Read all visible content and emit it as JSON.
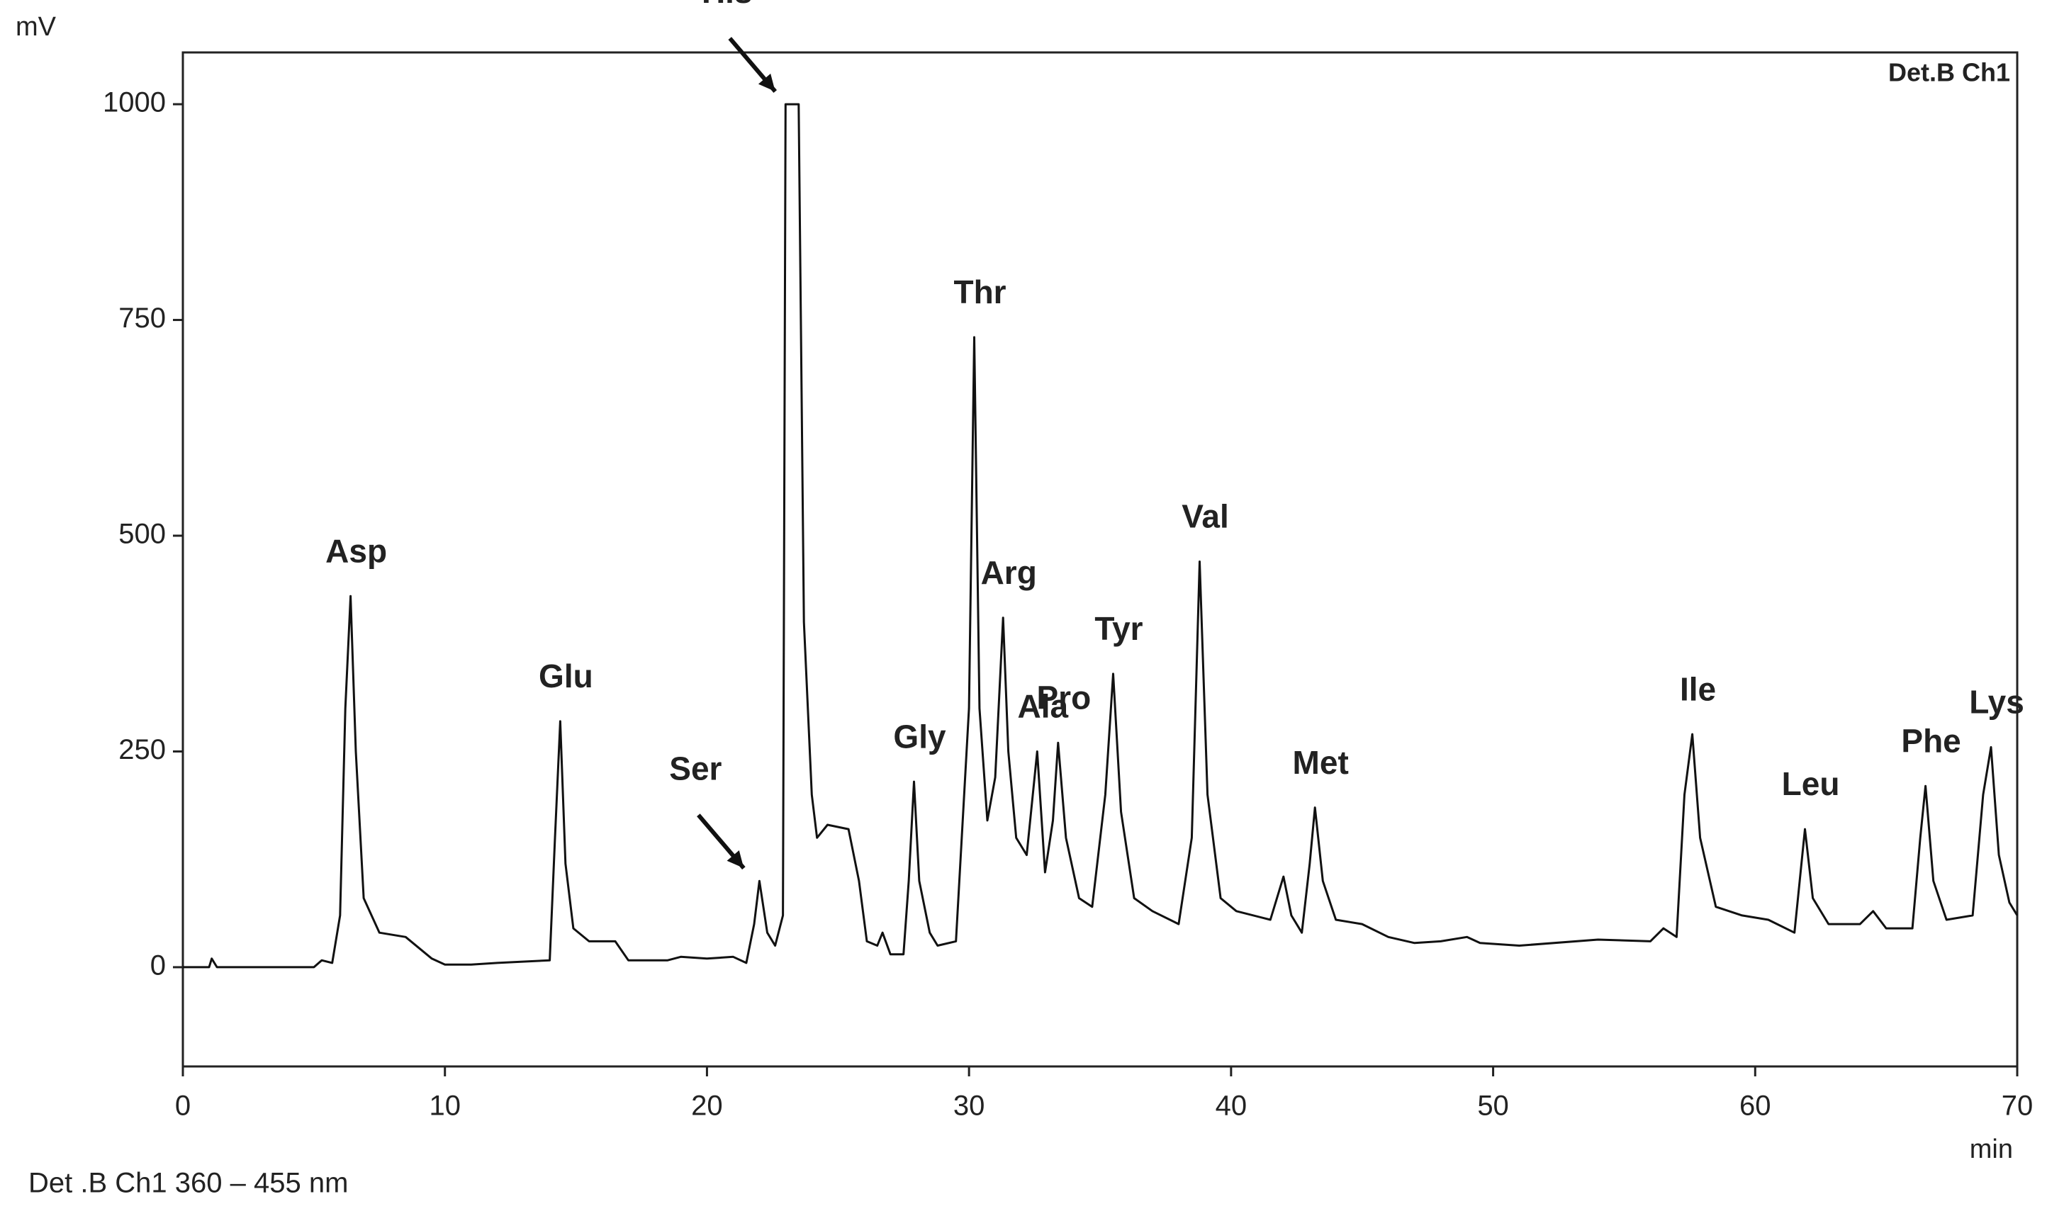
{
  "chart_data": {
    "type": "line",
    "y_label": "mV",
    "x_label": "min",
    "plot_note": "Det.B Ch1",
    "caption": "Det .B Ch1 360 – 455 nm",
    "color": "#111111",
    "xlim": [
      0,
      70
    ],
    "ylim": [
      -115,
      1060
    ],
    "xticks": [
      0,
      10,
      20,
      30,
      40,
      50,
      60,
      70
    ],
    "yticks": [
      0,
      250,
      500,
      750,
      1000
    ],
    "x": [
      0,
      1.0,
      1.1,
      1.3,
      5,
      5.3,
      5.7,
      6.0,
      6.2,
      6.4,
      6.6,
      6.9,
      7.5,
      8.5,
      9.5,
      10,
      11,
      12,
      14.0,
      14.2,
      14.4,
      14.6,
      14.9,
      15.5,
      16.5,
      17,
      18.5,
      19,
      20,
      21,
      21.5,
      21.8,
      22.0,
      22.3,
      22.6,
      22.9,
      23.0,
      23.5,
      23.7,
      24.0,
      24.2,
      24.6,
      25.4,
      25.8,
      26.1,
      26.5,
      26.7,
      27.0,
      27.5,
      27.7,
      27.9,
      28.1,
      28.5,
      28.8,
      29.5,
      30.0,
      30.2,
      30.4,
      30.7,
      31.0,
      31.3,
      31.5,
      31.8,
      32.2,
      32.6,
      32.9,
      33.2,
      33.4,
      33.7,
      34.2,
      34.7,
      35.2,
      35.5,
      35.8,
      36.3,
      37,
      38,
      38.5,
      38.8,
      39.1,
      39.6,
      40.2,
      41.5,
      42.0,
      42.3,
      42.7,
      43.0,
      43.2,
      43.5,
      44,
      45,
      46,
      47,
      48,
      49,
      49.5,
      51,
      54,
      56,
      56.5,
      57.0,
      57.3,
      57.6,
      57.9,
      58.5,
      59.5,
      60.5,
      61.5,
      61.7,
      61.9,
      62.2,
      62.8,
      64,
      64.5,
      65,
      66,
      66.3,
      66.5,
      66.8,
      67.3,
      68.3,
      68.7,
      69.0,
      69.3,
      69.7,
      70
    ],
    "values": [
      0,
      0,
      10,
      0,
      0,
      8,
      5,
      60,
      300,
      430,
      250,
      80,
      40,
      35,
      10,
      3,
      3,
      5,
      8,
      150,
      285,
      120,
      45,
      30,
      30,
      8,
      8,
      12,
      10,
      12,
      5,
      50,
      100,
      40,
      25,
      60,
      1000,
      1000,
      400,
      200,
      150,
      165,
      160,
      100,
      30,
      25,
      40,
      15,
      15,
      100,
      215,
      100,
      40,
      25,
      30,
      300,
      730,
      300,
      170,
      220,
      405,
      250,
      150,
      130,
      250,
      110,
      170,
      260,
      150,
      80,
      70,
      200,
      340,
      180,
      80,
      65,
      50,
      150,
      470,
      200,
      80,
      65,
      55,
      105,
      60,
      40,
      120,
      185,
      100,
      55,
      50,
      35,
      28,
      30,
      35,
      28,
      25,
      32,
      30,
      45,
      35,
      200,
      270,
      150,
      70,
      60,
      55,
      40,
      100,
      160,
      80,
      50,
      50,
      65,
      45,
      45,
      150,
      210,
      100,
      55,
      60,
      200,
      255,
      130,
      75,
      60
    ],
    "peaks": [
      {
        "label": "Asp",
        "x": 6.4,
        "y": 430
      },
      {
        "label": "Glu",
        "x": 14.4,
        "y": 285
      },
      {
        "label": "Ser",
        "x": 22.0,
        "y": 100,
        "arrow": true
      },
      {
        "label": "His",
        "x": 23.2,
        "y": 1000,
        "arrow": true
      },
      {
        "label": "Gly",
        "x": 27.9,
        "y": 215
      },
      {
        "label": "Thr",
        "x": 30.2,
        "y": 730
      },
      {
        "label": "Arg",
        "x": 31.3,
        "y": 405
      },
      {
        "label": "Ala",
        "x": 32.6,
        "y": 250
      },
      {
        "label": "Pro",
        "x": 33.4,
        "y": 260
      },
      {
        "label": "Tyr",
        "x": 35.5,
        "y": 340
      },
      {
        "label": "Val",
        "x": 38.8,
        "y": 470
      },
      {
        "label": "Met",
        "x": 43.2,
        "y": 185
      },
      {
        "label": "Ile",
        "x": 57.6,
        "y": 270
      },
      {
        "label": "Leu",
        "x": 61.9,
        "y": 160
      },
      {
        "label": "Phe",
        "x": 66.5,
        "y": 210
      },
      {
        "label": "Lys",
        "x": 69.0,
        "y": 255
      }
    ]
  }
}
